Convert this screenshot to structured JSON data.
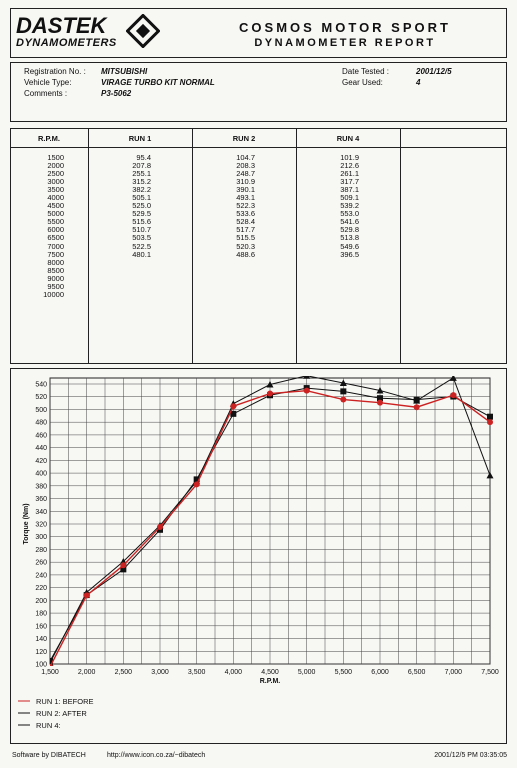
{
  "header": {
    "logo_main": "DASTEK",
    "logo_sub": "DYNAMOMETERS",
    "company": "COSMOS MOTOR SPORT",
    "report_title": "DYNAMOMETER REPORT"
  },
  "info": {
    "registration_label": "Registration No. :",
    "registration_value": "MITSUBISHI",
    "vehicle_label": "Vehicle Type:",
    "vehicle_value": "VIRAGE TURBO KIT NORMAL",
    "comments_label": "Comments :",
    "comments_value": "P3-5062",
    "date_label": "Date Tested :",
    "date_value": "2001/12/5",
    "gear_label": "Gear Used:",
    "gear_value": "4"
  },
  "table": {
    "headers": [
      "R.P.M.",
      "RUN 1",
      "RUN 2",
      "RUN 4"
    ],
    "rpm": [
      "1500",
      "2000",
      "2500",
      "3000",
      "3500",
      "4000",
      "4500",
      "5000",
      "5500",
      "6000",
      "6500",
      "7000",
      "7500",
      "8000",
      "8500",
      "9000",
      "9500",
      "10000"
    ],
    "run1": [
      "95.4",
      "207.8",
      "255.1",
      "315.2",
      "382.2",
      "505.1",
      "525.0",
      "529.5",
      "515.6",
      "510.7",
      "503.5",
      "522.5",
      "480.1"
    ],
    "run2": [
      "104.7",
      "208.3",
      "248.7",
      "310.9",
      "390.1",
      "493.1",
      "522.3",
      "533.6",
      "528.4",
      "517.7",
      "515.5",
      "520.3",
      "488.6"
    ],
    "run4": [
      "101.9",
      "212.6",
      "261.1",
      "317.7",
      "387.1",
      "509.1",
      "539.2",
      "553.0",
      "541.6",
      "529.8",
      "513.8",
      "549.6",
      "396.5"
    ]
  },
  "chart_data": {
    "type": "line",
    "title": "",
    "xlabel": "R.P.M.",
    "ylabel": "Torque (Nm)",
    "x": [
      1500,
      2000,
      2500,
      3000,
      3500,
      4000,
      4500,
      5000,
      5500,
      6000,
      6500,
      7000,
      7500
    ],
    "xticks": [
      "1,500",
      "2,000",
      "2,500",
      "3,000",
      "3,500",
      "4,000",
      "4,500",
      "5,000",
      "5,500",
      "6,000",
      "6,500",
      "7,000",
      "7,500"
    ],
    "xlim": [
      1500,
      7500
    ],
    "ylim": [
      100,
      540
    ],
    "yticks": [
      100,
      120,
      140,
      160,
      180,
      200,
      220,
      240,
      260,
      280,
      300,
      320,
      340,
      360,
      380,
      400,
      420,
      440,
      460,
      480,
      500,
      520,
      540
    ],
    "grid": true,
    "legend_position": "bottom-left",
    "series": [
      {
        "name": "RUN 1: BEFORE",
        "marker": "circle",
        "color": "#cc2222",
        "values": [
          95.4,
          207.8,
          255.1,
          315.2,
          382.2,
          505.1,
          525.0,
          529.5,
          515.6,
          510.7,
          503.5,
          522.5,
          480.1
        ]
      },
      {
        "name": "RUN 2: AFTER",
        "marker": "square",
        "color": "#111111",
        "values": [
          104.7,
          208.3,
          248.7,
          310.9,
          390.1,
          493.1,
          522.3,
          533.6,
          528.4,
          517.7,
          515.5,
          520.3,
          488.6
        ]
      },
      {
        "name": "RUN 4:",
        "marker": "triangle",
        "color": "#111111",
        "values": [
          101.9,
          212.6,
          261.1,
          317.7,
          387.1,
          509.1,
          539.2,
          553.0,
          541.6,
          529.8,
          513.8,
          549.6,
          396.5
        ]
      }
    ]
  },
  "footer": {
    "software": "Software by DIBATECH",
    "url": "http://www.icon.co.za/~dibatech",
    "timestamp": "2001/12/5 PM 03:35:05"
  }
}
